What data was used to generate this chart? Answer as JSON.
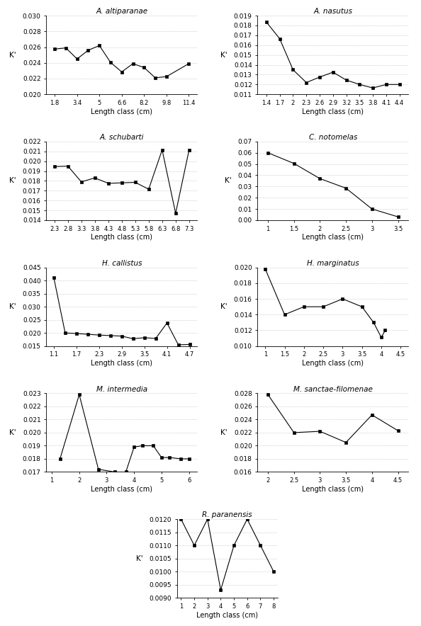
{
  "panels": [
    {
      "title": "A. altiparanae",
      "x": [
        1.8,
        2.6,
        3.4,
        4.2,
        5.0,
        5.8,
        6.6,
        7.4,
        8.2,
        9.0,
        9.8,
        11.4
      ],
      "y": [
        0.02575,
        0.0259,
        0.0245,
        0.0256,
        0.0262,
        0.02405,
        0.02285,
        0.0239,
        0.0234,
        0.0221,
        0.02225,
        0.0239
      ],
      "xlabel": "Length class (cm)",
      "ylabel": "K'",
      "ylim": [
        0.02,
        0.03
      ],
      "yticks": [
        0.02,
        0.022,
        0.024,
        0.026,
        0.028,
        0.03
      ],
      "xticks": [
        1.8,
        3.4,
        5.0,
        6.6,
        8.2,
        9.8,
        11.4
      ],
      "xlim": [
        1.2,
        12.0
      ]
    },
    {
      "title": "A. nasutus",
      "x": [
        1.4,
        1.7,
        2.0,
        2.3,
        2.6,
        2.9,
        3.2,
        3.5,
        3.8,
        4.1,
        4.4
      ],
      "y": [
        0.01835,
        0.01665,
        0.0135,
        0.0122,
        0.01275,
        0.01325,
        0.01245,
        0.012,
        0.01165,
        0.012,
        0.012
      ],
      "xlabel": "Length class (cm)",
      "ylabel": "K'",
      "ylim": [
        0.011,
        0.019
      ],
      "yticks": [
        0.011,
        0.012,
        0.013,
        0.014,
        0.015,
        0.016,
        0.017,
        0.018,
        0.019
      ],
      "xticks": [
        1.4,
        1.7,
        2.0,
        2.3,
        2.6,
        2.9,
        3.2,
        3.5,
        3.8,
        4.1,
        4.4
      ],
      "xlim": [
        1.2,
        4.6
      ]
    },
    {
      "title": "A. schubarti",
      "x": [
        2.3,
        2.8,
        3.3,
        3.8,
        4.3,
        4.8,
        5.3,
        5.8,
        6.3,
        6.8,
        7.3
      ],
      "y": [
        0.01945,
        0.0195,
        0.0179,
        0.0183,
        0.01775,
        0.0178,
        0.01785,
        0.01715,
        0.02115,
        0.0147,
        0.02115
      ],
      "xlabel": "Length class (cm)",
      "ylabel": "K'",
      "ylim": [
        0.014,
        0.022
      ],
      "yticks": [
        0.014,
        0.015,
        0.016,
        0.017,
        0.018,
        0.019,
        0.02,
        0.021,
        0.022
      ],
      "xticks": [
        2.3,
        2.8,
        3.3,
        3.8,
        4.3,
        4.8,
        5.3,
        5.8,
        6.3,
        6.8,
        7.3
      ],
      "xlim": [
        2.0,
        7.6
      ]
    },
    {
      "title": "C. notomelas",
      "x": [
        1.0,
        1.5,
        2.0,
        2.5,
        3.0,
        3.5
      ],
      "y": [
        0.06,
        0.0505,
        0.037,
        0.0285,
        0.01,
        0.003
      ],
      "xlabel": "Length class (cm)",
      "ylabel": "K'",
      "ylim": [
        0.0,
        0.07
      ],
      "yticks": [
        0.0,
        0.01,
        0.02,
        0.03,
        0.04,
        0.05,
        0.06,
        0.07
      ],
      "xticks": [
        1.0,
        1.5,
        2.0,
        2.5,
        3.0,
        3.5
      ],
      "xlim": [
        0.8,
        3.7
      ]
    },
    {
      "title": "H. callistus",
      "x": [
        1.1,
        1.4,
        1.7,
        2.0,
        2.3,
        2.6,
        2.9,
        3.2,
        3.5,
        3.8,
        4.1,
        4.4,
        4.7
      ],
      "y": [
        0.041,
        0.02,
        0.0198,
        0.0195,
        0.0192,
        0.019,
        0.0188,
        0.0178,
        0.0182,
        0.0179,
        0.0238,
        0.0155,
        0.0156
      ],
      "xlabel": "Length class (cm)",
      "ylabel": "K'",
      "ylim": [
        0.015,
        0.045
      ],
      "yticks": [
        0.015,
        0.02,
        0.025,
        0.03,
        0.035,
        0.04,
        0.045
      ],
      "xticks": [
        1.1,
        1.7,
        2.3,
        2.9,
        3.5,
        4.1,
        4.7
      ],
      "xlim": [
        0.9,
        4.9
      ]
    },
    {
      "title": "H. marginatus",
      "x": [
        1.0,
        1.5,
        2.0,
        2.5,
        3.0,
        3.5,
        3.8,
        4.0,
        4.1
      ],
      "y": [
        0.0198,
        0.014,
        0.015,
        0.015,
        0.016,
        0.015,
        0.013,
        0.0111,
        0.012
      ],
      "xlabel": "Length class (cm)",
      "ylabel": "K'",
      "ylim": [
        0.01,
        0.02
      ],
      "yticks": [
        0.01,
        0.012,
        0.014,
        0.016,
        0.018,
        0.02
      ],
      "xticks": [
        1.0,
        1.5,
        2.0,
        2.5,
        3.0,
        3.5,
        4.0,
        4.5
      ],
      "xlim": [
        0.8,
        4.7
      ]
    },
    {
      "title": "M. intermedia",
      "x": [
        1.3,
        2.0,
        2.7,
        3.3,
        3.7,
        4.0,
        4.3,
        4.7,
        5.0,
        5.3,
        5.7,
        6.0
      ],
      "y": [
        0.018,
        0.0229,
        0.0172,
        0.017,
        0.017,
        0.0189,
        0.019,
        0.019,
        0.0181,
        0.0181,
        0.018,
        0.018
      ],
      "xlabel": "Length class (cm)",
      "ylabel": "K'",
      "ylim": [
        0.017,
        0.023
      ],
      "yticks": [
        0.017,
        0.018,
        0.019,
        0.02,
        0.021,
        0.022,
        0.023
      ],
      "xticks": [
        1,
        2,
        3,
        4,
        5,
        6
      ],
      "xlim": [
        0.8,
        6.3
      ]
    },
    {
      "title": "M. sanctae-filomenae",
      "x": [
        2.0,
        2.5,
        3.0,
        3.5,
        4.0,
        4.5
      ],
      "y": [
        0.0278,
        0.022,
        0.0222,
        0.0205,
        0.0247,
        0.0223
      ],
      "xlabel": "Length class (cm)",
      "ylabel": "K'",
      "ylim": [
        0.016,
        0.028
      ],
      "yticks": [
        0.016,
        0.018,
        0.02,
        0.022,
        0.024,
        0.026,
        0.028
      ],
      "xticks": [
        2.0,
        2.5,
        3.0,
        3.5,
        4.0,
        4.5
      ],
      "xlim": [
        1.8,
        4.7
      ]
    },
    {
      "title": "R. paranensis",
      "x": [
        1,
        2,
        3,
        4,
        5,
        6,
        7,
        8
      ],
      "y": [
        0.012,
        0.011,
        0.012,
        0.0093,
        0.011,
        0.012,
        0.011,
        0.01
      ],
      "xlabel": "Length class (cm)",
      "ylabel": "K'",
      "ylim": [
        0.009,
        0.012
      ],
      "yticks": [
        0.009,
        0.0095,
        0.01,
        0.0105,
        0.011,
        0.0115,
        0.012
      ],
      "xticks": [
        1,
        2,
        3,
        4,
        5,
        6,
        7,
        8
      ],
      "xlim": [
        0.7,
        8.3
      ]
    }
  ],
  "fig_width": 5.94,
  "fig_height": 8.84,
  "dpi": 100
}
